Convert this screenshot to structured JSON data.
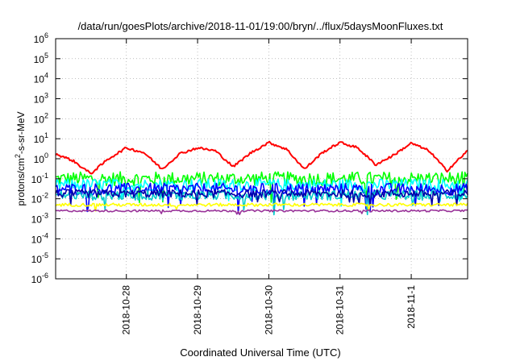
{
  "chart_data": {
    "type": "line",
    "title": "/data/run/goesPlots/archive/2018-11-01/19:00/bryn/../flux/5daysMoonFluxes.txt",
    "xlabel": "Coordinated Universal Time (UTC)",
    "ylabel": {
      "base": "protons/cm",
      "sup": "2",
      "rest": "-s-sr-MeV"
    },
    "y_scale": "log",
    "ylim": [
      1e-06,
      1000000.0
    ],
    "y_ticks": [
      {
        "base": "10",
        "exp": "6",
        "value": 1000000.0
      },
      {
        "base": "10",
        "exp": "5",
        "value": 100000.0
      },
      {
        "base": "10",
        "exp": "4",
        "value": 10000.0
      },
      {
        "base": "10",
        "exp": "3",
        "value": 1000.0
      },
      {
        "base": "10",
        "exp": "2",
        "value": 100.0
      },
      {
        "base": "10",
        "exp": "1",
        "value": 10.0
      },
      {
        "base": "10",
        "exp": "0",
        "value": 1.0
      },
      {
        "base": "10",
        "exp": "-1",
        "value": 0.1
      },
      {
        "base": "10",
        "exp": "-2",
        "value": 0.01
      },
      {
        "base": "10",
        "exp": "-3",
        "value": 0.001
      },
      {
        "base": "10",
        "exp": "-4",
        "value": 0.0001
      },
      {
        "base": "10",
        "exp": "-5",
        "value": 1e-05
      },
      {
        "base": "10",
        "exp": "-6",
        "value": 1e-06
      }
    ],
    "x_range_days": [
      "2018-10-27T00:10",
      "2018-11-01T19:00"
    ],
    "x_ticks": [
      "2018-10-28",
      "2018-10-29",
      "2018-10-30",
      "2018-10-31",
      "2018-11-1"
    ],
    "grid": true,
    "legend": "none",
    "series": [
      {
        "color": "#ff0000",
        "x": [
          "2018-10-27T00:00",
          "2018-10-27T06:00",
          "2018-10-27T12:00",
          "2018-10-27T18:00",
          "2018-10-28T00:00",
          "2018-10-28T06:00",
          "2018-10-28T12:00",
          "2018-10-28T18:00",
          "2018-10-29T00:00",
          "2018-10-29T06:00",
          "2018-10-29T12:00",
          "2018-10-29T18:00",
          "2018-10-30T00:00",
          "2018-10-30T06:00",
          "2018-10-30T12:00",
          "2018-10-30T18:00",
          "2018-10-31T00:00",
          "2018-10-31T06:00",
          "2018-10-31T12:00",
          "2018-10-31T18:00",
          "2018-11-01T00:00",
          "2018-11-01T06:00",
          "2018-11-01T12:00",
          "2018-11-01T19:00"
        ],
        "y": [
          1.8,
          0.8,
          0.18,
          1.0,
          3.5,
          2.0,
          0.3,
          1.8,
          3.5,
          2.5,
          0.4,
          2.0,
          6.5,
          3.0,
          0.3,
          2.0,
          6.5,
          3.5,
          0.5,
          1.5,
          6.0,
          2.5,
          0.25,
          2.5
        ]
      },
      {
        "color": "#00ff00",
        "level": 0.1,
        "spread": 0.35
      },
      {
        "color": "#00ffff",
        "level": 0.05,
        "spread": 0.3
      },
      {
        "color": "#0000ff",
        "level": 0.03,
        "spread": 0.3
      },
      {
        "color": "#00cccc",
        "level": 0.015,
        "spread": 0.25
      },
      {
        "color": "#0000aa",
        "level": 0.018,
        "spread": 0.2
      },
      {
        "color": "#ffff00",
        "level": 0.005,
        "spread": 0.08
      },
      {
        "color": "#993399",
        "level": 0.0025,
        "spread": 0.05
      }
    ]
  }
}
